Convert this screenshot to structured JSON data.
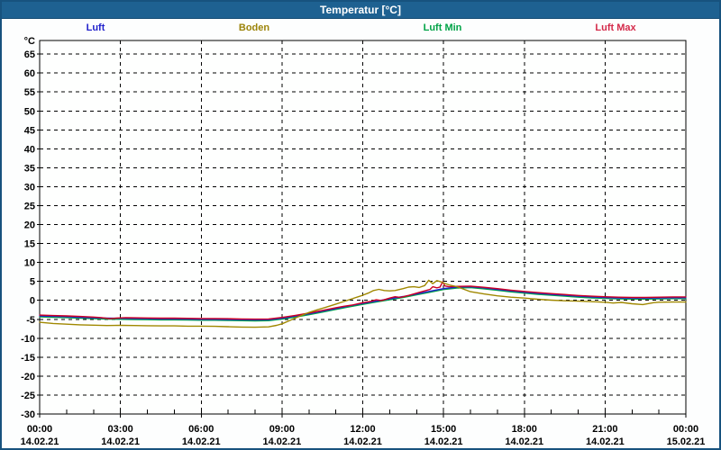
{
  "window": {
    "title": "Temperatur [°C]",
    "titlebar_color": "#1E6191",
    "border_color": "#17527E"
  },
  "legend": {
    "items": [
      {
        "label": "Luft",
        "color": "#2222CC"
      },
      {
        "label": "Boden",
        "color": "#9C8409"
      },
      {
        "label": "Luft Min",
        "color": "#00A346"
      },
      {
        "label": "Luft Max",
        "color": "#D42A4A"
      }
    ]
  },
  "chart_data": {
    "type": "line",
    "title": "Temperatur [°C]",
    "ylabel": "°C",
    "xlabel": "",
    "grid": "dashed-black",
    "legend_position": "top",
    "ylim": [
      -30,
      68.6
    ],
    "y_axis": {
      "unit": "°C",
      "ticks": [
        65,
        60,
        55,
        50,
        45,
        40,
        35,
        30,
        25,
        20,
        15,
        10,
        5,
        0,
        -5,
        -10,
        -15,
        -20,
        -25,
        -30
      ]
    },
    "x_axis": {
      "hours_span": 24,
      "major_step_hours": 3,
      "minor_step_hours": 1,
      "ticks": [
        {
          "time": "00:00",
          "date": "14.02.21"
        },
        {
          "time": "03:00",
          "date": "14.02.21"
        },
        {
          "time": "06:00",
          "date": "14.02.21"
        },
        {
          "time": "09:00",
          "date": "14.02.21"
        },
        {
          "time": "12:00",
          "date": "14.02.21"
        },
        {
          "time": "15:00",
          "date": "14.02.21"
        },
        {
          "time": "18:00",
          "date": "14.02.21"
        },
        {
          "time": "21:00",
          "date": "14.02.21"
        },
        {
          "time": "00:00",
          "date": "15.02.21"
        }
      ]
    },
    "series": [
      {
        "name": "Luft Min",
        "color": "#00A346",
        "points": [
          [
            0,
            -4.35
          ],
          [
            0.5,
            -4.45
          ],
          [
            1,
            -4.55
          ],
          [
            1.5,
            -4.7
          ],
          [
            2,
            -4.85
          ],
          [
            2.5,
            -4.95
          ],
          [
            3,
            -5
          ],
          [
            3.5,
            -5.05
          ],
          [
            4,
            -5.1
          ],
          [
            4.5,
            -5.15
          ],
          [
            5,
            -5.15
          ],
          [
            5.5,
            -5.2
          ],
          [
            6,
            -5.25
          ],
          [
            6.5,
            -5.25
          ],
          [
            7,
            -5.3
          ],
          [
            7.5,
            -5.35
          ],
          [
            8,
            -5.4
          ],
          [
            8.5,
            -5.35
          ],
          [
            9,
            -4.95
          ],
          [
            9.5,
            -4.4
          ],
          [
            10,
            -3.8
          ],
          [
            10.5,
            -3.1
          ],
          [
            11,
            -2.4
          ],
          [
            11.5,
            -1.7
          ],
          [
            12,
            -1.05
          ],
          [
            12.5,
            -0.45
          ],
          [
            13,
            0.15
          ],
          [
            13.5,
            0.75
          ],
          [
            14,
            1.45
          ],
          [
            14.5,
            2.15
          ],
          [
            15,
            2.85
          ],
          [
            15.5,
            3.25
          ],
          [
            16,
            3.35
          ],
          [
            16.5,
            3.05
          ],
          [
            17,
            2.65
          ],
          [
            17.5,
            2.25
          ],
          [
            18,
            1.9
          ],
          [
            18.5,
            1.6
          ],
          [
            19,
            1.35
          ],
          [
            19.5,
            1.1
          ],
          [
            20,
            0.85
          ],
          [
            20.5,
            0.65
          ],
          [
            21,
            0.5
          ],
          [
            21.5,
            0.4
          ],
          [
            22,
            0.35
          ],
          [
            22.5,
            0.35
          ],
          [
            23,
            0.4
          ],
          [
            23.5,
            0.45
          ],
          [
            24,
            0.45
          ]
        ]
      },
      {
        "name": "Luft",
        "color": "#2222CC",
        "points": [
          [
            0,
            -4.1
          ],
          [
            0.5,
            -4.2
          ],
          [
            1,
            -4.3
          ],
          [
            1.5,
            -4.45
          ],
          [
            2,
            -4.6
          ],
          [
            2.5,
            -4.7
          ],
          [
            3,
            -4.75
          ],
          [
            3.5,
            -4.8
          ],
          [
            4,
            -4.85
          ],
          [
            4.5,
            -4.9
          ],
          [
            5,
            -4.9
          ],
          [
            5.5,
            -4.95
          ],
          [
            6,
            -5
          ],
          [
            6.5,
            -5
          ],
          [
            7,
            -5.05
          ],
          [
            7.5,
            -5.1
          ],
          [
            8,
            -5.15
          ],
          [
            8.5,
            -5.1
          ],
          [
            9,
            -4.7
          ],
          [
            9.5,
            -4.15
          ],
          [
            10,
            -3.55
          ],
          [
            10.5,
            -2.85
          ],
          [
            11,
            -2.15
          ],
          [
            11.5,
            -1.45
          ],
          [
            12,
            -0.8
          ],
          [
            12.5,
            -0.2
          ],
          [
            13,
            0.4
          ],
          [
            13.5,
            1
          ],
          [
            14,
            1.7
          ],
          [
            14.5,
            2.4
          ],
          [
            15,
            3.1
          ],
          [
            15.5,
            3.5
          ],
          [
            16,
            3.6
          ],
          [
            16.5,
            3.3
          ],
          [
            17,
            2.9
          ],
          [
            17.5,
            2.5
          ],
          [
            18,
            2.15
          ],
          [
            18.5,
            1.85
          ],
          [
            19,
            1.6
          ],
          [
            19.5,
            1.35
          ],
          [
            20,
            1.1
          ],
          [
            20.5,
            0.9
          ],
          [
            21,
            0.75
          ],
          [
            21.5,
            0.65
          ],
          [
            22,
            0.6
          ],
          [
            22.5,
            0.6
          ],
          [
            23,
            0.65
          ],
          [
            23.5,
            0.7
          ],
          [
            24,
            0.7
          ]
        ]
      },
      {
        "name": "Luft Max",
        "color": "#CC0022",
        "points": [
          [
            0,
            -3.9
          ],
          [
            0.5,
            -4
          ],
          [
            1,
            -4.1
          ],
          [
            1.5,
            -4.25
          ],
          [
            2,
            -4.4
          ],
          [
            2.3,
            -4.55
          ],
          [
            2.6,
            -4.85
          ],
          [
            2.9,
            -4.65
          ],
          [
            3.2,
            -4.55
          ],
          [
            3.5,
            -4.6
          ],
          [
            4,
            -4.65
          ],
          [
            4.5,
            -4.7
          ],
          [
            5,
            -4.7
          ],
          [
            5.5,
            -4.75
          ],
          [
            6,
            -4.8
          ],
          [
            6.5,
            -4.8
          ],
          [
            7,
            -4.85
          ],
          [
            7.5,
            -4.9
          ],
          [
            8,
            -4.95
          ],
          [
            8.5,
            -4.9
          ],
          [
            9,
            -4.5
          ],
          [
            9.5,
            -3.95
          ],
          [
            10,
            -3.35
          ],
          [
            10.5,
            -2.65
          ],
          [
            11,
            -1.95
          ],
          [
            11.3,
            -1.55
          ],
          [
            11.6,
            -1.25
          ],
          [
            12,
            -0.6
          ],
          [
            12.3,
            -0.25
          ],
          [
            12.5,
            0.15
          ],
          [
            12.7,
            -0.05
          ],
          [
            13,
            0.6
          ],
          [
            13.2,
            0.95
          ],
          [
            13.4,
            0.8
          ],
          [
            13.7,
            1.3
          ],
          [
            14,
            1.9
          ],
          [
            14.3,
            2.5
          ],
          [
            14.5,
            2.9
          ],
          [
            14.6,
            3.6
          ],
          [
            14.75,
            3.3
          ],
          [
            14.87,
            3.5
          ],
          [
            14.97,
            4.9
          ],
          [
            15.05,
            3.8
          ],
          [
            15.2,
            3.6
          ],
          [
            15.5,
            3.7
          ],
          [
            16,
            3.75
          ],
          [
            16.5,
            3.45
          ],
          [
            17,
            3.1
          ],
          [
            17.5,
            2.7
          ],
          [
            18,
            2.35
          ],
          [
            18.5,
            2.05
          ],
          [
            19,
            1.8
          ],
          [
            19.5,
            1.55
          ],
          [
            20,
            1.3
          ],
          [
            20.5,
            1.1
          ],
          [
            21,
            0.95
          ],
          [
            21.5,
            0.85
          ],
          [
            22,
            0.8
          ],
          [
            22.5,
            0.8
          ],
          [
            23,
            0.85
          ],
          [
            23.5,
            0.9
          ],
          [
            24,
            0.9
          ]
        ]
      },
      {
        "name": "Boden",
        "color": "#A08800",
        "points": [
          [
            0,
            -5.8
          ],
          [
            0.5,
            -6.1
          ],
          [
            1,
            -6.3
          ],
          [
            1.5,
            -6.45
          ],
          [
            2,
            -6.55
          ],
          [
            2.5,
            -6.65
          ],
          [
            3,
            -6.6
          ],
          [
            3.5,
            -6.65
          ],
          [
            4,
            -6.7
          ],
          [
            4.5,
            -6.75
          ],
          [
            5,
            -6.75
          ],
          [
            5.5,
            -6.8
          ],
          [
            6,
            -6.8
          ],
          [
            6.5,
            -6.85
          ],
          [
            7,
            -6.95
          ],
          [
            7.5,
            -7.05
          ],
          [
            8,
            -7.1
          ],
          [
            8.5,
            -7
          ],
          [
            8.8,
            -6.6
          ],
          [
            9,
            -6.2
          ],
          [
            9.3,
            -5.3
          ],
          [
            9.6,
            -4.35
          ],
          [
            10,
            -3.2
          ],
          [
            10.3,
            -2.5
          ],
          [
            10.6,
            -1.9
          ],
          [
            11,
            -1
          ],
          [
            11.3,
            -0.3
          ],
          [
            11.6,
            0.4
          ],
          [
            11.9,
            1.1
          ],
          [
            12.2,
            1.9
          ],
          [
            12.4,
            2.6
          ],
          [
            12.6,
            2.9
          ],
          [
            12.8,
            2.6
          ],
          [
            13,
            2.5
          ],
          [
            13.2,
            2.6
          ],
          [
            13.5,
            3.1
          ],
          [
            13.7,
            3.5
          ],
          [
            13.9,
            3.6
          ],
          [
            14.1,
            3.4
          ],
          [
            14.3,
            3.9
          ],
          [
            14.45,
            5.3
          ],
          [
            14.6,
            4.4
          ],
          [
            14.75,
            5.2
          ],
          [
            14.9,
            4.9
          ],
          [
            15,
            4.6
          ],
          [
            15.2,
            4.1
          ],
          [
            15.5,
            3.6
          ],
          [
            16,
            2.3
          ],
          [
            16.5,
            1.7
          ],
          [
            17,
            1.2
          ],
          [
            17.5,
            0.85
          ],
          [
            18,
            0.6
          ],
          [
            18.5,
            0.3
          ],
          [
            19,
            0.05
          ],
          [
            19.5,
            -0.1
          ],
          [
            20,
            -0.2
          ],
          [
            20.5,
            -0.35
          ],
          [
            21,
            -0.5
          ],
          [
            21.3,
            -0.7
          ],
          [
            21.6,
            -0.55
          ],
          [
            22,
            -0.9
          ],
          [
            22.4,
            -1.1
          ],
          [
            22.8,
            -0.6
          ],
          [
            23,
            -0.5
          ],
          [
            23.5,
            -0.45
          ],
          [
            24,
            -0.45
          ]
        ]
      }
    ]
  }
}
